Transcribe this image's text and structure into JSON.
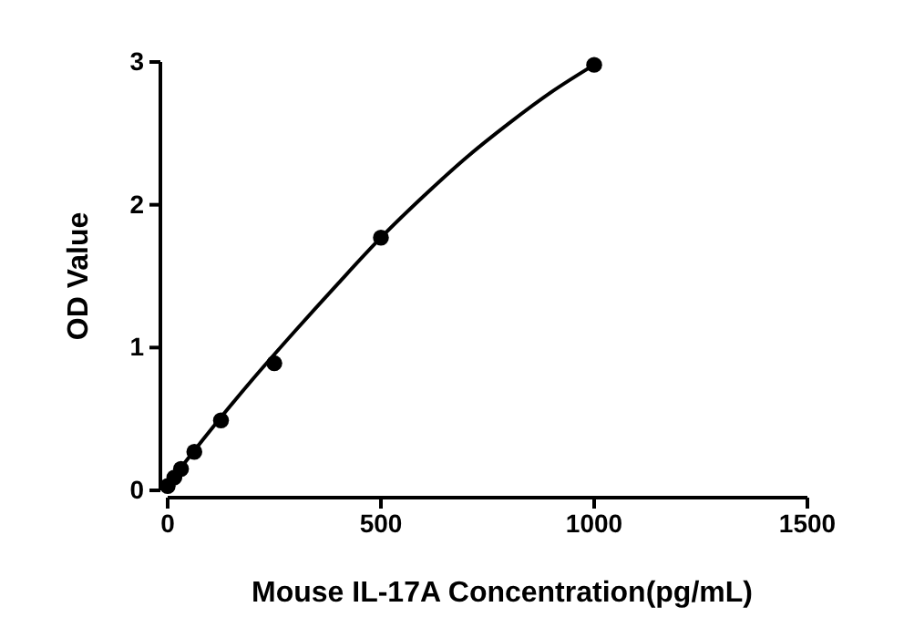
{
  "chart_data": {
    "type": "scatter",
    "xlabel": "Mouse IL-17A Concentration(pg/mL)",
    "ylabel": "OD Value",
    "xlim": [
      0,
      1500
    ],
    "xticks": [
      0,
      500,
      1000,
      1500
    ],
    "ylim": [
      0,
      3
    ],
    "yticks": [
      0,
      1,
      2,
      3
    ],
    "grid": false,
    "series": [
      {
        "color": "#000000",
        "marker": "circle",
        "x": [
          0,
          15.6,
          31.25,
          62.5,
          125,
          250,
          500,
          1000
        ],
        "values": [
          0.03,
          0.09,
          0.15,
          0.27,
          0.49,
          0.89,
          1.77,
          2.98
        ]
      },
      {
        "type": "line",
        "color": "#000000",
        "marker": "none",
        "line_style": "solid",
        "x": [
          0,
          100,
          200,
          300,
          400,
          500,
          600,
          700,
          800,
          900,
          1000
        ],
        "values": [
          0.04,
          0.42,
          0.78,
          1.12,
          1.45,
          1.77,
          2.06,
          2.33,
          2.57,
          2.79,
          2.98
        ]
      }
    ]
  }
}
